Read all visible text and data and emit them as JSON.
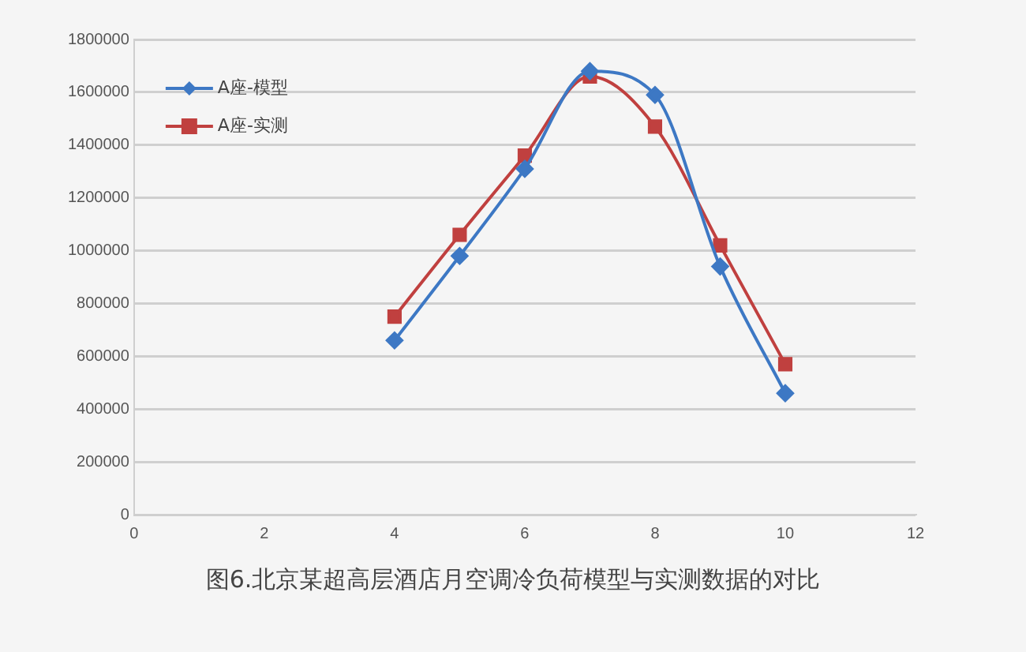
{
  "chart_data": {
    "type": "line",
    "title": "图6.北京某超高层酒店月空调冷负荷模型与实测数据的对比",
    "x": [
      4,
      5,
      6,
      7,
      8,
      9,
      10
    ],
    "series": [
      {
        "name": "A座-模型",
        "color": "#3d78c4",
        "marker": "diamond",
        "values": [
          660000,
          980000,
          1310000,
          1680000,
          1590000,
          940000,
          460000
        ]
      },
      {
        "name": "A座-实测",
        "color": "#c0403f",
        "marker": "square",
        "values": [
          750000,
          1060000,
          1360000,
          1660000,
          1470000,
          1020000,
          570000
        ]
      }
    ],
    "xlim": [
      0,
      12
    ],
    "xticks": [
      0,
      2,
      4,
      6,
      8,
      10,
      12
    ],
    "ylim": [
      0,
      1800000
    ],
    "yticks": [
      0,
      200000,
      400000,
      600000,
      800000,
      1000000,
      1200000,
      1400000,
      1600000,
      1800000
    ],
    "grid": "y",
    "legend": "top left"
  }
}
